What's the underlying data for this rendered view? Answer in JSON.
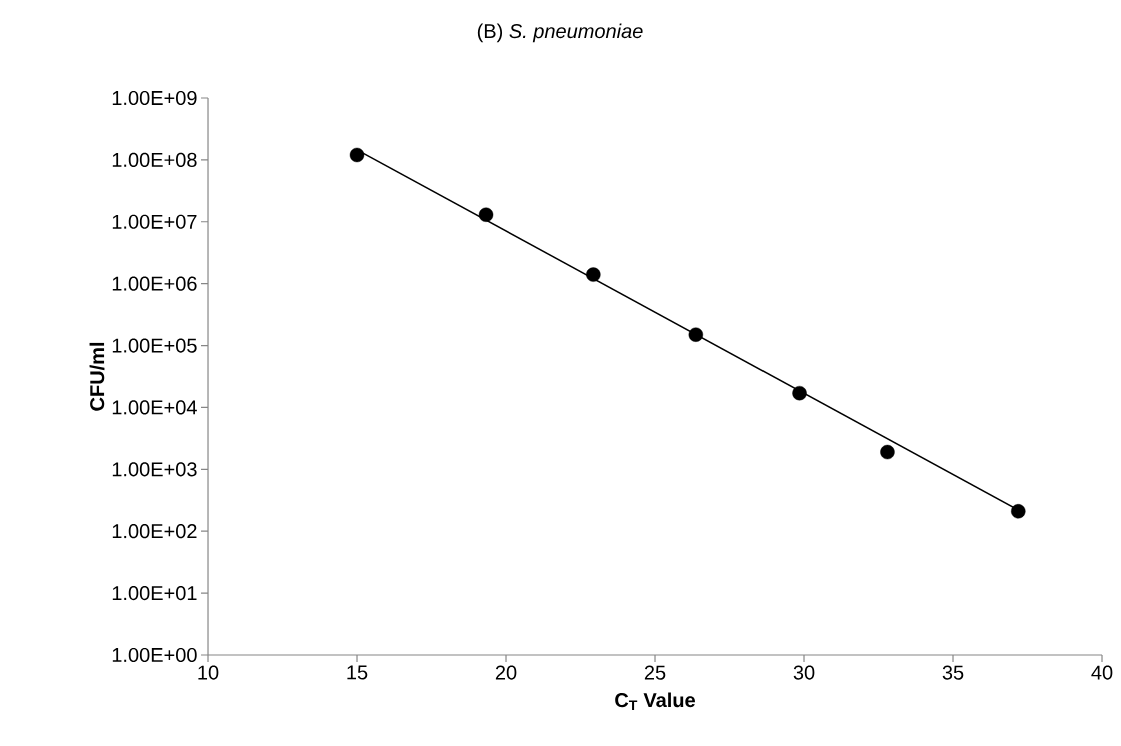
{
  "chart_data": {
    "type": "scatter",
    "title": "(B)    *S. pneumoniae*",
    "xlabel": "C$_{T}$ Value",
    "ylabel": "CFU/ml",
    "x": [
      15.0,
      19.33,
      22.93,
      26.37,
      29.85,
      32.8,
      37.19
    ],
    "series": [
      {
        "color": "#000000",
        "marker": "circle",
        "values": [
          120000000.0,
          13000000.0,
          1400000.0,
          150000.0,
          17000.0,
          1900.0,
          210.0
        ]
      },
      {
        "type": "line",
        "color": "#000000",
        "marker": "none",
        "x": [
          15.0,
          37.19
        ],
        "values": [
          145000000.0,
          220.0
        ]
      }
    ],
    "log": "y",
    "grid": false,
    "xlim": [
      10,
      40
    ],
    "xticks": [
      10,
      15,
      20,
      25,
      30,
      35,
      40
    ],
    "ylim": [
      1,
      1000000000.0
    ],
    "yticks": [
      {
        "value": 1,
        "label": "1.00E+00"
      },
      {
        "value": 10,
        "label": "1.00E+01"
      },
      {
        "value": 100,
        "label": "1.00E+02"
      },
      {
        "value": 1000,
        "label": "1.00E+03"
      },
      {
        "value": 10000,
        "label": "1.00E+04"
      },
      {
        "value": 100000,
        "label": "1.00E+05"
      },
      {
        "value": 1000000,
        "label": "1.00E+06"
      },
      {
        "value": 10000000,
        "label": "1.00E+07"
      },
      {
        "value": 100000000,
        "label": "1.00E+08"
      },
      {
        "value": 1000000000,
        "label": "1.00E+09"
      }
    ]
  }
}
